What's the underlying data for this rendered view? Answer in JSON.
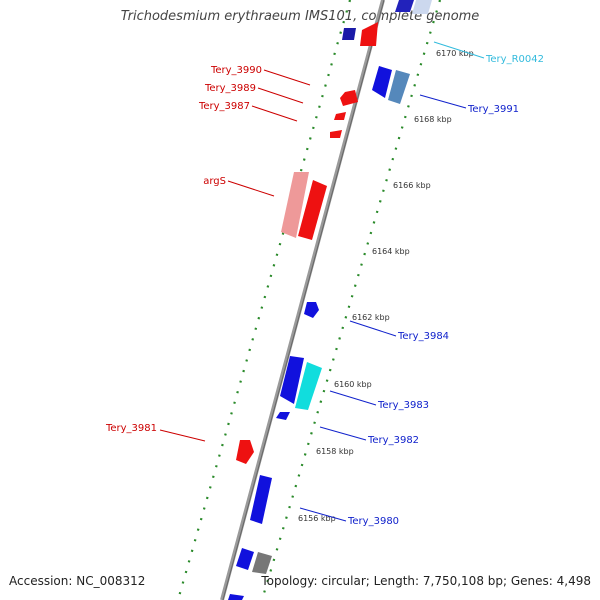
{
  "title": "Trichodesmium erythraeum IMS101, complete genome",
  "footer": {
    "accession": "Accession: NC_008312",
    "summary": "Topology: circular; Length: 7,750,108 bp; Genes: 4,498"
  },
  "ticks": [
    "6170 kbp",
    "6168 kbp",
    "6166 kbp",
    "6164 kbp",
    "6162 kbp",
    "6160 kbp",
    "6158 kbp",
    "6156 kbp"
  ],
  "genes": [
    {
      "name": "Tery_R0042",
      "color": "#33bbdd"
    },
    {
      "name": "Tery_3991",
      "color": "#1122cc"
    },
    {
      "name": "Tery_3990",
      "color": "#cc0000"
    },
    {
      "name": "Tery_3989",
      "color": "#cc0000"
    },
    {
      "name": "Tery_3987",
      "color": "#cc0000"
    },
    {
      "name": "argS",
      "color": "#cc0000"
    },
    {
      "name": "Tery_3984",
      "color": "#1122cc"
    },
    {
      "name": "Tery_3983",
      "color": "#1122cc"
    },
    {
      "name": "Tery_3982",
      "color": "#1122cc"
    },
    {
      "name": "Tery_3981",
      "color": "#cc0000"
    },
    {
      "name": "Tery_3980",
      "color": "#1122cc"
    }
  ]
}
